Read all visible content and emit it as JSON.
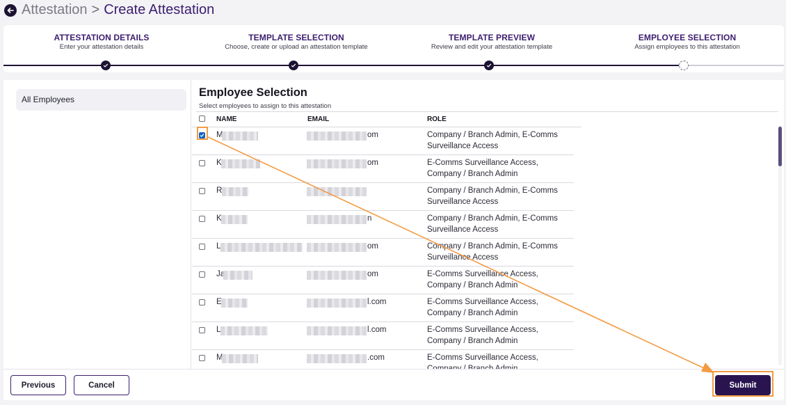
{
  "breadcrumb": {
    "parent": "Attestation",
    "separator": ">",
    "current": "Create Attestation"
  },
  "stepper": {
    "steps": [
      {
        "title": "ATTESTATION DETAILS",
        "subtitle": "Enter your attestation details",
        "status": "complete"
      },
      {
        "title": "TEMPLATE SELECTION",
        "subtitle": "Choose, create or upload an attestation template",
        "status": "complete"
      },
      {
        "title": "TEMPLATE PREVIEW",
        "subtitle": "Review and edit your attestation template",
        "status": "complete"
      },
      {
        "title": "EMPLOYEE SELECTION",
        "subtitle": "Assign employees to this attestation",
        "status": "current"
      }
    ]
  },
  "sidebar": {
    "items": [
      {
        "label": "All Employees"
      }
    ]
  },
  "selection": {
    "title": "Employee Selection",
    "subtitle": "Select employees to assign to this attestation",
    "columns": {
      "name": "NAME",
      "email": "EMAIL",
      "role": "ROLE"
    },
    "rows": [
      {
        "checked": true,
        "name_initial": "M",
        "email_suffix": "om",
        "role": "Company / Branch Admin, E-Comms Surveillance Access"
      },
      {
        "checked": false,
        "name_initial": "K",
        "email_suffix": "om",
        "role": "E-Comms Surveillance Access, Company / Branch Admin"
      },
      {
        "checked": false,
        "name_initial": "R",
        "email_suffix": "",
        "role": "Company / Branch Admin, E-Comms Surveillance Access"
      },
      {
        "checked": false,
        "name_initial": "K",
        "email_suffix": "n",
        "role": "Company / Branch Admin, E-Comms Surveillance Access"
      },
      {
        "checked": false,
        "name_initial": "L",
        "email_suffix": "om",
        "role": "Company / Branch Admin, E-Comms Surveillance Access"
      },
      {
        "checked": false,
        "name_initial": "Ja",
        "email_suffix": "om",
        "role": "E-Comms Surveillance Access, Company / Branch Admin"
      },
      {
        "checked": false,
        "name_initial": "E",
        "email_suffix": "l.com",
        "role": "E-Comms Surveillance Access, Company / Branch Admin"
      },
      {
        "checked": false,
        "name_initial": "L",
        "email_suffix": "l.com",
        "role": "E-Comms Surveillance Access, Company / Branch Admin"
      },
      {
        "checked": false,
        "name_initial": "M",
        "email_suffix": ".com",
        "role": "E-Comms Surveillance Access, Company / Branch Admin"
      }
    ]
  },
  "footer": {
    "previous_label": "Previous",
    "cancel_label": "Cancel",
    "submit_label": "Submit"
  },
  "colors": {
    "brand_dark": "#2a1450",
    "brand_text": "#3b1d6e",
    "annotation": "#f39b45",
    "checkbox": "#1565c0"
  },
  "icons": {
    "back": "arrow-left-icon",
    "step_complete": "check-icon",
    "checkbox_checked": "check-icon"
  }
}
